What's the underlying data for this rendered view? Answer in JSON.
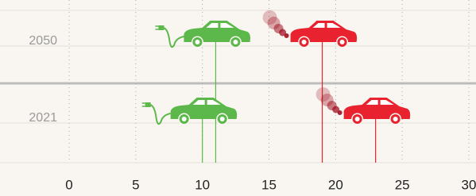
{
  "chart_data": {
    "type": "dot",
    "categories": [
      "2050",
      "2021"
    ],
    "series": [
      {
        "color": "#5cb84a",
        "icon": "electric",
        "values": [
          11,
          10
        ]
      },
      {
        "color": "#e8232f",
        "icon": "gas",
        "values": [
          19,
          23
        ]
      }
    ],
    "xlim": [
      0,
      30
    ],
    "xticks": [
      0,
      5,
      10,
      15,
      20,
      25,
      30
    ],
    "grid": true
  }
}
